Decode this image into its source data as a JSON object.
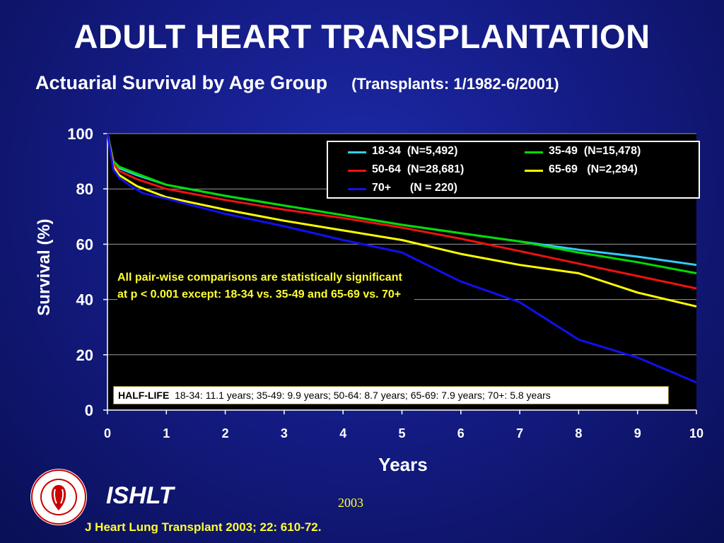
{
  "title": "ADULT HEART TRANSPLANTATION",
  "subtitle": "Actuarial Survival by Age Group",
  "subtitle_range": "(Transplants: 1/1982-6/2001)",
  "colors": {
    "background": "#141c86",
    "accent_text": "#ffff33"
  },
  "chart_data": {
    "type": "line",
    "xlabel": "Years",
    "ylabel": "Survival (%)",
    "xlim": [
      0,
      10
    ],
    "ylim": [
      0,
      100
    ],
    "x_ticks": [
      "0",
      "1",
      "2",
      "3",
      "4",
      "5",
      "6",
      "7",
      "8",
      "9",
      "10"
    ],
    "y_ticks": [
      "0",
      "20",
      "40",
      "60",
      "80",
      "100"
    ],
    "grid": "horizontal",
    "legend_position": "top-right",
    "series": [
      {
        "name": "18-34  (N=5,492)",
        "color": "#33ccff",
        "x": [
          0,
          0.1,
          0.2,
          0.5,
          1,
          2,
          3,
          4,
          5,
          6,
          7,
          8,
          9,
          10
        ],
        "y": [
          100,
          90,
          87.5,
          85,
          81.5,
          77.5,
          74,
          70.5,
          67,
          64,
          61,
          58,
          55.5,
          52.5
        ]
      },
      {
        "name": "35-49  (N=15,478)",
        "color": "#00dd00",
        "x": [
          0,
          0.1,
          0.2,
          0.5,
          1,
          2,
          3,
          4,
          5,
          6,
          7,
          8,
          9,
          10
        ],
        "y": [
          100,
          90,
          88,
          85.5,
          81.5,
          77.5,
          74,
          70.5,
          67,
          64,
          61,
          57,
          53.5,
          49.5
        ]
      },
      {
        "name": "50-64  (N=28,681)",
        "color": "#ee1111",
        "x": [
          0,
          0.1,
          0.2,
          0.5,
          1,
          2,
          3,
          4,
          5,
          6,
          7,
          8,
          9,
          10
        ],
        "y": [
          100,
          89,
          86.5,
          83.5,
          80,
          76,
          72.5,
          69.5,
          66,
          62,
          57.5,
          53,
          48.5,
          44
        ]
      },
      {
        "name": "65-69   (N=2,294)",
        "color": "#ffff00",
        "x": [
          0,
          0.1,
          0.2,
          0.5,
          1,
          2,
          3,
          4,
          5,
          6,
          7,
          8,
          9,
          10
        ],
        "y": [
          100,
          88,
          85,
          81,
          77,
          72.5,
          68.5,
          65,
          61.5,
          56.5,
          52.5,
          49.5,
          42.5,
          37.5
        ]
      },
      {
        "name": "70+      (N = 220)",
        "color": "#1010ee",
        "x": [
          0,
          0.1,
          0.2,
          0.4,
          0.6,
          1,
          2,
          3,
          4,
          5,
          6,
          7,
          8,
          9,
          10
        ],
        "y": [
          100,
          87,
          84,
          81,
          78.5,
          76.5,
          71,
          66.5,
          61.5,
          57,
          46.5,
          39,
          25.5,
          19,
          10
        ]
      }
    ],
    "annotation": "All pair-wise comparisons are statistically significant at p < 0.001 except: 18-34 vs. 35-49 and 65-69 vs. 70+",
    "half_life_label": "HALF-LIFE",
    "half_life_text": "18-34: 11.1 years; 35-49: 9.9 years; 50-64: 8.7 years; 65-69: 7.9 years; 70+: 5.8 years"
  },
  "footer": {
    "org": "ISHLT",
    "year": "2003",
    "citation": "J Heart Lung Transplant 2003; 22: 610-72.",
    "logo_text": "INTERNATIONAL SOCIETY FOR HEART & LUNG TRANSPLANTATION"
  }
}
